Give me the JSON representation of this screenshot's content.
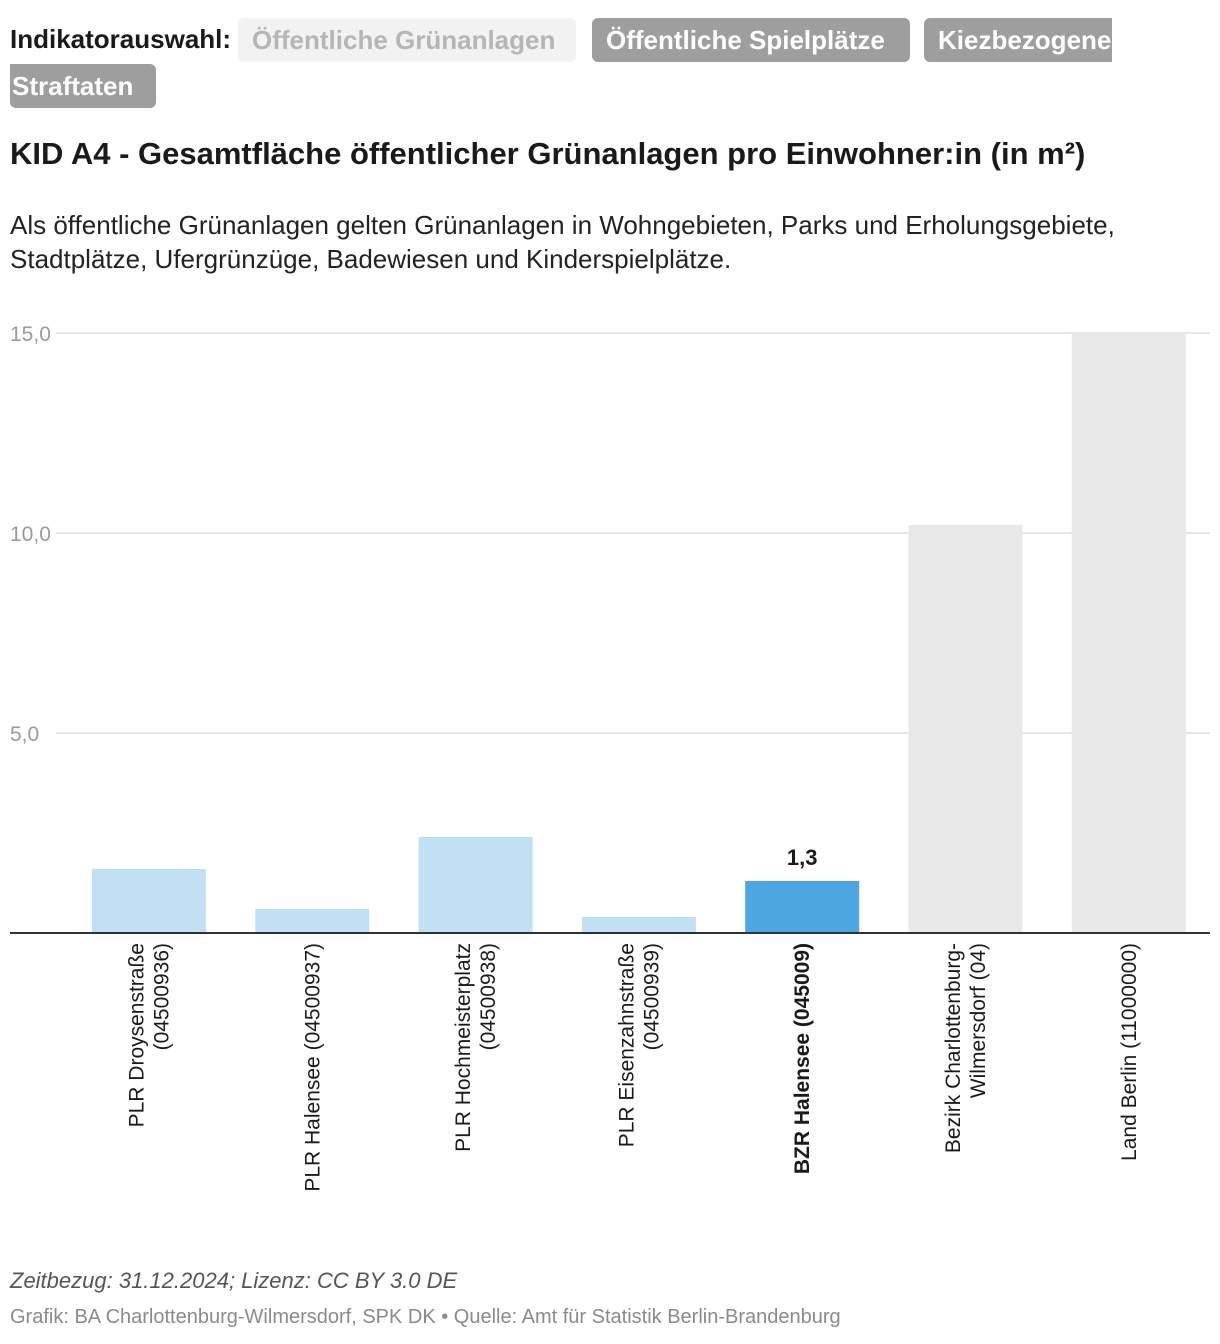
{
  "selector": {
    "label": "Indikatorauswahl:",
    "options": [
      "Öffentliche Grünanlagen",
      "Öffentliche Spielplätze",
      "Kiezbezogene",
      "Straftaten"
    ]
  },
  "title": "KID A4 - Gesamtfläche öffentlicher Grünanlagen pro Einwohner:in (in m²)",
  "subtitle": "Als öffentliche Grünanlagen gelten Grünanlagen in Wohngebieten, Parks und Erholungsgebiete, Stadtplätze, Ufergrünzüge, Badewiesen und Kinderspielplätze.",
  "footer": {
    "meta": "Zeitbezug: 31.12.2024; Lizenz: CC BY 3.0 DE",
    "source": "Grafik: BA Charlottenburg-Wilmersdorf, SPK DK • Quelle: Amt für Statistik Berlin-Brandenburg"
  },
  "colors": {
    "plr": "#c2e0f4",
    "bzr": "#4da6e0",
    "context": "#e8e8e8",
    "grid": "#dddddd",
    "axis": "#333333"
  },
  "chart_data": {
    "type": "bar",
    "title": "KID A4 - Gesamtfläche öffentlicher Grünanlagen pro Einwohner:in (in m²)",
    "xlabel": "",
    "ylabel": "",
    "ylim": [
      0,
      15
    ],
    "yticks": [
      5,
      10,
      15
    ],
    "ytick_labels": [
      "5,0",
      "10,0",
      "15,0"
    ],
    "grid": true,
    "categories": [
      [
        "PLR Droysenstraße",
        "(04500936)"
      ],
      [
        "PLR Halensee (04500937)"
      ],
      [
        "PLR Hochmeisterplatz",
        "(04500938)"
      ],
      [
        "PLR Eisenzahnstraße",
        "(04500939)"
      ],
      [
        "BZR Halensee (045009)"
      ],
      [
        "Bezirk Charlottenburg-",
        "Wilmersdorf (04)"
      ],
      [
        "Land Berlin (11000000)"
      ]
    ],
    "values": [
      1.6,
      0.6,
      2.4,
      0.4,
      1.3,
      10.2,
      15.0
    ],
    "bar_roles": [
      "plr",
      "plr",
      "plr",
      "plr",
      "bzr",
      "context",
      "context"
    ],
    "highlight_index": 4,
    "highlight_label": "1,3"
  }
}
